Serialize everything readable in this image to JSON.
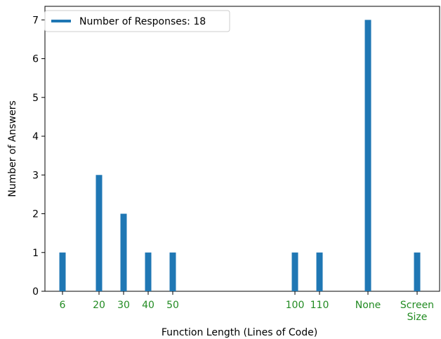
{
  "chart_data": {
    "type": "bar",
    "xlabel": "Function Length (Lines of Code)",
    "ylabel": "Number of Answers",
    "legend": {
      "label": "Number of Responses: 18",
      "placement": "top-left"
    },
    "categories": [
      "6",
      "20",
      "30",
      "40",
      "50",
      "100",
      "110",
      "None",
      "Screen Size"
    ],
    "values": [
      1,
      3,
      2,
      1,
      1,
      1,
      1,
      7,
      1
    ],
    "ylim": [
      0,
      7.35
    ],
    "yticks": [
      0,
      1,
      2,
      3,
      4,
      5,
      6,
      7
    ],
    "grid": false,
    "colors": {
      "bar": "#1f77b4",
      "xtick_label": "#228b22"
    }
  }
}
